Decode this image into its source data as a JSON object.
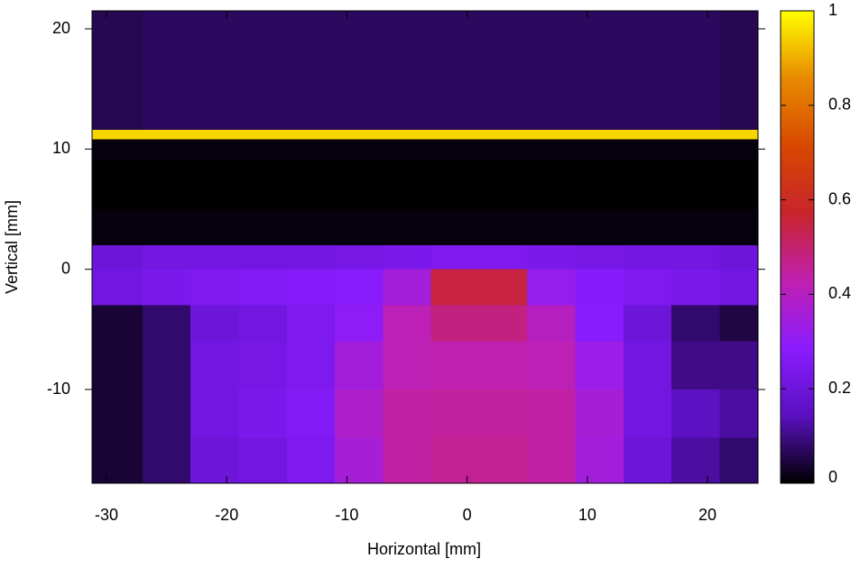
{
  "chart_data": {
    "type": "heatmap",
    "x_label": "Horizontal [mm]",
    "y_label": "Vertical [mm]",
    "xlim": [
      -31.2,
      24.2
    ],
    "ylim": [
      -17.8,
      21.5
    ],
    "xticks": [
      -30,
      -20,
      -10,
      0,
      10,
      20
    ],
    "yticks": [
      -10,
      0,
      10,
      20
    ],
    "xbins": [
      -31.2,
      -27,
      -23,
      -19,
      -15,
      -11,
      -7,
      -3,
      1,
      5,
      9,
      13,
      17,
      21,
      24.2
    ],
    "ybins": [
      21.5,
      15,
      11.6,
      10.8,
      9,
      5,
      2,
      0,
      -3,
      -6,
      -10,
      -14,
      -17.8
    ],
    "values": [
      [
        0.06,
        0.07,
        0.07,
        0.07,
        0.07,
        0.07,
        0.07,
        0.07,
        0.07,
        0.07,
        0.07,
        0.07,
        0.07,
        0.06
      ],
      [
        0.06,
        0.07,
        0.07,
        0.07,
        0.07,
        0.07,
        0.07,
        0.07,
        0.07,
        0.07,
        0.07,
        0.07,
        0.07,
        0.06
      ],
      [
        0.95,
        0.95,
        0.95,
        0.95,
        0.95,
        0.95,
        0.95,
        0.95,
        0.95,
        0.95,
        0.95,
        0.95,
        0.95,
        0.95
      ],
      [
        0.01,
        0.01,
        0.01,
        0.01,
        0.01,
        0.01,
        0.01,
        0.01,
        0.01,
        0.01,
        0.01,
        0.01,
        0.01,
        0.01
      ],
      [
        0,
        0,
        0,
        0,
        0,
        0,
        0,
        0,
        0,
        0,
        0,
        0,
        0,
        0
      ],
      [
        0.01,
        0.01,
        0.01,
        0.01,
        0.01,
        0.01,
        0.01,
        0.01,
        0.01,
        0.01,
        0.01,
        0.01,
        0.01,
        0.01
      ],
      [
        0.2,
        0.22,
        0.22,
        0.22,
        0.22,
        0.23,
        0.24,
        0.25,
        0.25,
        0.24,
        0.23,
        0.22,
        0.22,
        0.2
      ],
      [
        0.22,
        0.24,
        0.25,
        0.26,
        0.27,
        0.28,
        0.35,
        0.55,
        0.55,
        0.32,
        0.27,
        0.25,
        0.24,
        0.22
      ],
      [
        0.04,
        0.08,
        0.2,
        0.22,
        0.25,
        0.3,
        0.42,
        0.48,
        0.48,
        0.4,
        0.28,
        0.2,
        0.08,
        0.05
      ],
      [
        0.04,
        0.08,
        0.22,
        0.23,
        0.25,
        0.35,
        0.42,
        0.43,
        0.43,
        0.42,
        0.33,
        0.22,
        0.1,
        0.1
      ],
      [
        0.04,
        0.08,
        0.22,
        0.24,
        0.26,
        0.38,
        0.44,
        0.45,
        0.45,
        0.44,
        0.36,
        0.22,
        0.15,
        0.12
      ],
      [
        0.04,
        0.08,
        0.2,
        0.22,
        0.25,
        0.36,
        0.44,
        0.46,
        0.46,
        0.44,
        0.35,
        0.2,
        0.12,
        0.08
      ]
    ],
    "colormap": [
      "#000000",
      "#5a10c0",
      "#8a1cff",
      "#c020b0",
      "#c8242c",
      "#d84800",
      "#e88a00",
      "#ffff00"
    ],
    "clim": [
      0,
      1
    ],
    "cticks": [
      0,
      0.2,
      0.4,
      0.6,
      0.8,
      1
    ]
  }
}
